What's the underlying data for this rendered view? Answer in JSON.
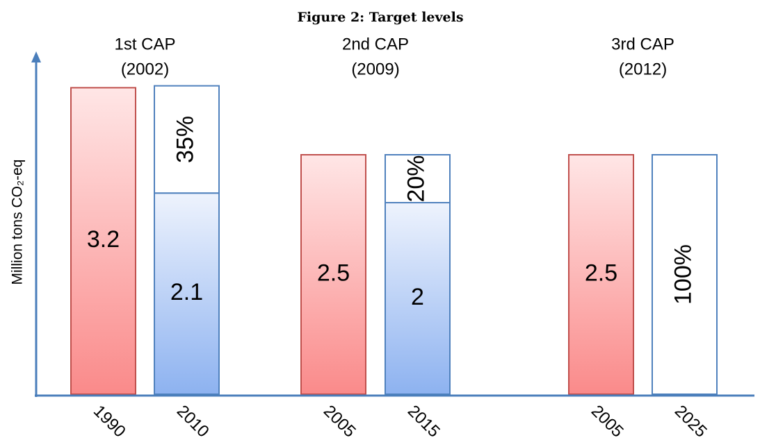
{
  "chart_data": {
    "type": "bar",
    "title": "Figure 2: Target levels",
    "y_label": "Million tons CO₂-eq",
    "groups": [
      {
        "name": "1st CAP",
        "year": "(2002)",
        "categories": [
          "1990",
          "2010"
        ],
        "baseline": 3.2,
        "target": 2.1,
        "reduction": 35,
        "reduction_label": "35%"
      },
      {
        "name": "2nd CAP",
        "year": "(2009)",
        "categories": [
          "2005",
          "2015"
        ],
        "baseline": 2.5,
        "target": 2,
        "reduction": 20,
        "reduction_label": "20%"
      },
      {
        "name": "3rd CAP",
        "year": "(2012)",
        "categories": [
          "2005",
          "2025"
        ],
        "baseline": 2.5,
        "target": 0,
        "reduction": 100,
        "reduction_label": "100%"
      }
    ],
    "baseline_color": "#c0504d",
    "target_color": "#4f81bd",
    "axis_color": "#4a7ebb"
  }
}
